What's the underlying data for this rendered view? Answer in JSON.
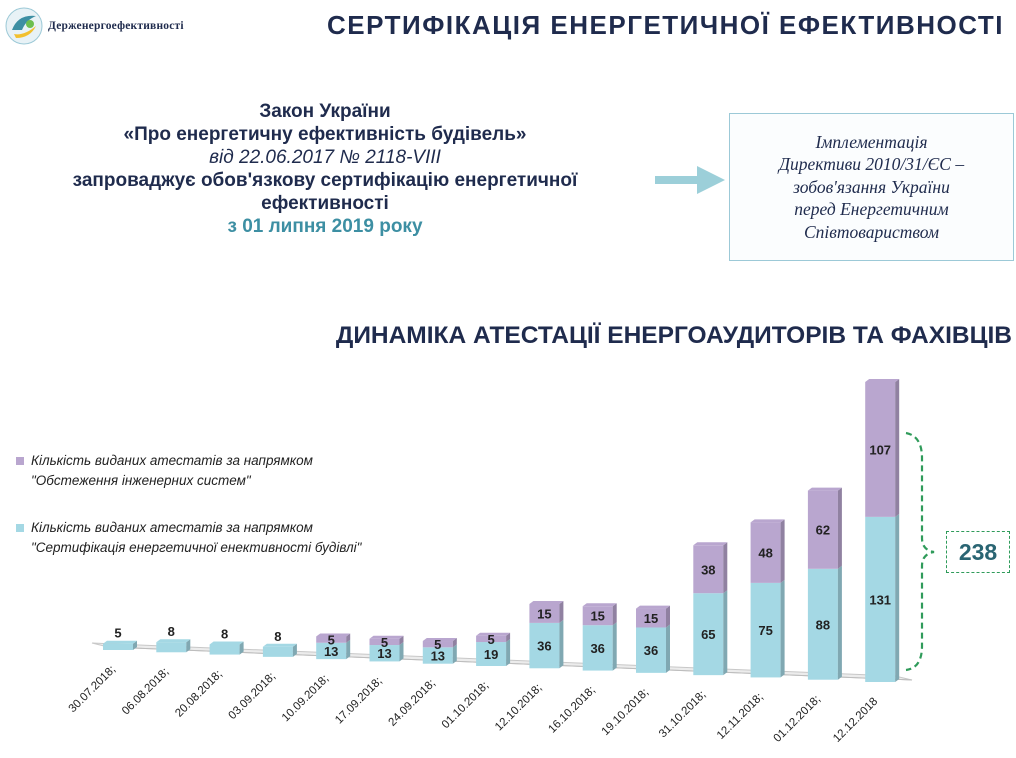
{
  "header": {
    "logo_text": "Держенергоефективності",
    "title": "СЕРТИФІКАЦІЯ ЕНЕРГЕТИЧНОЇ ЕФЕКТИВНОСТІ"
  },
  "law": {
    "line1": "Закон України",
    "line2": "«Про енергетичну ефективність будівель»",
    "line3": "від 22.06.2017 № 2118-VIII",
    "line4": "запроваджує обов'язкову сертифікацію енергетичної",
    "line5": "ефективності",
    "line6": "з 01 липня 2019 року"
  },
  "implementation": {
    "line1": "Імплементація",
    "line2": "Директиви 2010/31/ЄС –",
    "line3": "зобов'язання України",
    "line4": "перед Енергетичним",
    "line5": "Співтовариством"
  },
  "colors": {
    "title": "#1f2b4d",
    "accent": "#3d8fa3",
    "arrow": "#9ccfd9",
    "series_engineering": "#b9a6cf",
    "series_certification": "#a4d8e4",
    "brace": "#2f9b5a"
  },
  "chart_data": {
    "type": "bar",
    "stacked": true,
    "title": "ДИНАМІКА АТЕСТАЦІЇ ЕНЕРГОАУДИТОРІВ ТА ФАХІВЦІВ",
    "categories": [
      "30.07.2018;",
      "06.08.2018;",
      "20.08.2018;",
      "03.09.2018;",
      "10.09.2018;",
      "17.09.2018;",
      "24.09.2018;",
      "01.10.2018;",
      "12.10.2018;",
      "16.10.2018;",
      "19.10.2018;",
      "31.10.2018;",
      "12.11.2018;",
      "01.12.2018;",
      "12.12.2018"
    ],
    "series": [
      {
        "name": "Кількість виданих атестатів за напрямком \"Сертифікація енергетичної енективності будівлі\"",
        "values": [
          5,
          8,
          8,
          8,
          13,
          13,
          13,
          19,
          36,
          36,
          36,
          65,
          75,
          88,
          131
        ]
      },
      {
        "name": "Кількість виданих атестатів за напрямком \"Обстеження інженерних систем\"",
        "values": [
          0,
          0,
          0,
          0,
          5,
          5,
          5,
          5,
          15,
          15,
          15,
          38,
          48,
          62,
          107
        ]
      }
    ],
    "bottom_label_display": [
      "5",
      "8",
      "8",
      "8",
      "13",
      "13",
      "13",
      "19",
      "36",
      "36",
      "36",
      "65",
      "75",
      "88",
      "131"
    ],
    "top_label_display": [
      "",
      "",
      "",
      "",
      "5",
      "5",
      "5",
      "5",
      "15",
      "15",
      "15",
      "38",
      "48",
      "62",
      "107"
    ],
    "total_annotation": "238",
    "ylim": [
      0,
      238
    ],
    "legend_position": "left"
  }
}
